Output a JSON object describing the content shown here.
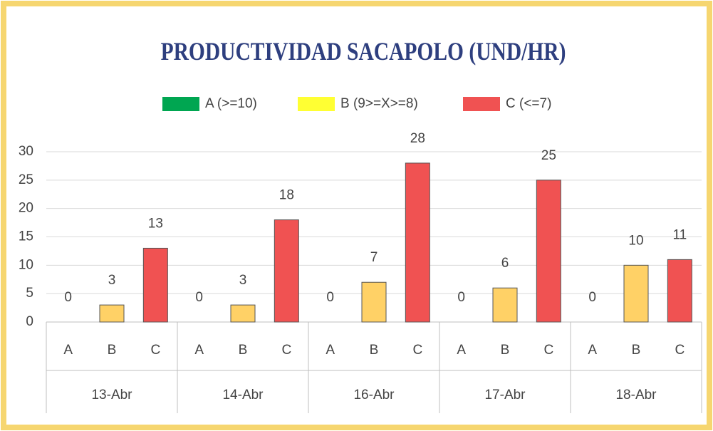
{
  "chart_data": {
    "type": "bar",
    "title": "PRODUCTIVIDAD SACAPOLO (UND/HR)",
    "categories": [
      "13-Abr",
      "14-Abr",
      "16-Abr",
      "17-Abr",
      "18-Abr"
    ],
    "subcategories": [
      "A",
      "B",
      "C"
    ],
    "series": [
      {
        "name": "A (>=10)",
        "color": "#00a651",
        "legend_color": "#00a651",
        "values": [
          0,
          0,
          0,
          0,
          0
        ]
      },
      {
        "name": "B (9>=X>=8)",
        "color": "#ffd166",
        "legend_color": "#ffff33",
        "values": [
          3,
          3,
          7,
          6,
          10
        ]
      },
      {
        "name": "C (<=7)",
        "color": "#f05252",
        "legend_color": "#f05252",
        "values": [
          13,
          18,
          28,
          25,
          11
        ]
      }
    ],
    "ylim": [
      0,
      30
    ],
    "yticks": [
      0,
      5,
      10,
      15,
      20,
      25,
      30
    ],
    "grid": true,
    "legend": "top"
  }
}
